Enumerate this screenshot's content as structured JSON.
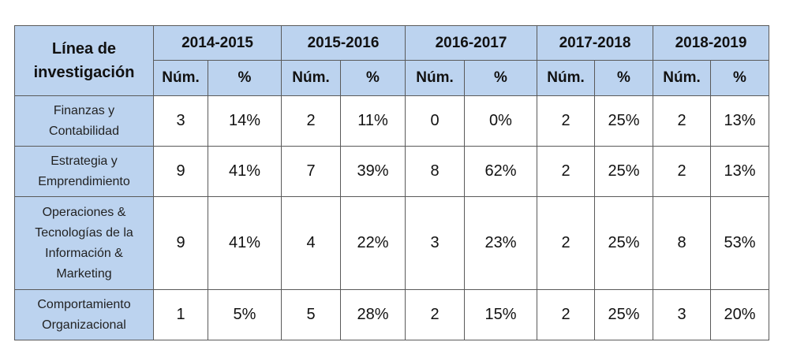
{
  "table": {
    "corner_label": "Línea de investigación",
    "years": [
      "2014-2015",
      "2015-2016",
      "2016-2017",
      "2017-2018",
      "2018-2019"
    ],
    "sub_headers": [
      "Núm.",
      "%"
    ],
    "rows": [
      {
        "label_lines": [
          "Finanzas y",
          "Contabilidad"
        ],
        "values": [
          "3",
          "14%",
          "2",
          "11%",
          "0",
          "0%",
          "2",
          "25%",
          "2",
          "13%"
        ]
      },
      {
        "label_lines": [
          "Estrategia y",
          "Emprendimiento"
        ],
        "values": [
          "9",
          "41%",
          "7",
          "39%",
          "8",
          "62%",
          "2",
          "25%",
          "2",
          "13%"
        ]
      },
      {
        "label_lines": [
          "Operaciones &",
          "Tecnologías de la",
          "Información &",
          "Marketing"
        ],
        "values": [
          "9",
          "41%",
          "4",
          "22%",
          "3",
          "23%",
          "2",
          "25%",
          "8",
          "53%"
        ]
      },
      {
        "label_lines": [
          "Comportamiento",
          "Organizacional"
        ],
        "values": [
          "1",
          "5%",
          "5",
          "28%",
          "2",
          "15%",
          "2",
          "25%",
          "3",
          "20%"
        ]
      }
    ]
  },
  "colors": {
    "header_background": "#bcd3ef",
    "border": "#5a5a5a",
    "cell_background": "#ffffff"
  }
}
